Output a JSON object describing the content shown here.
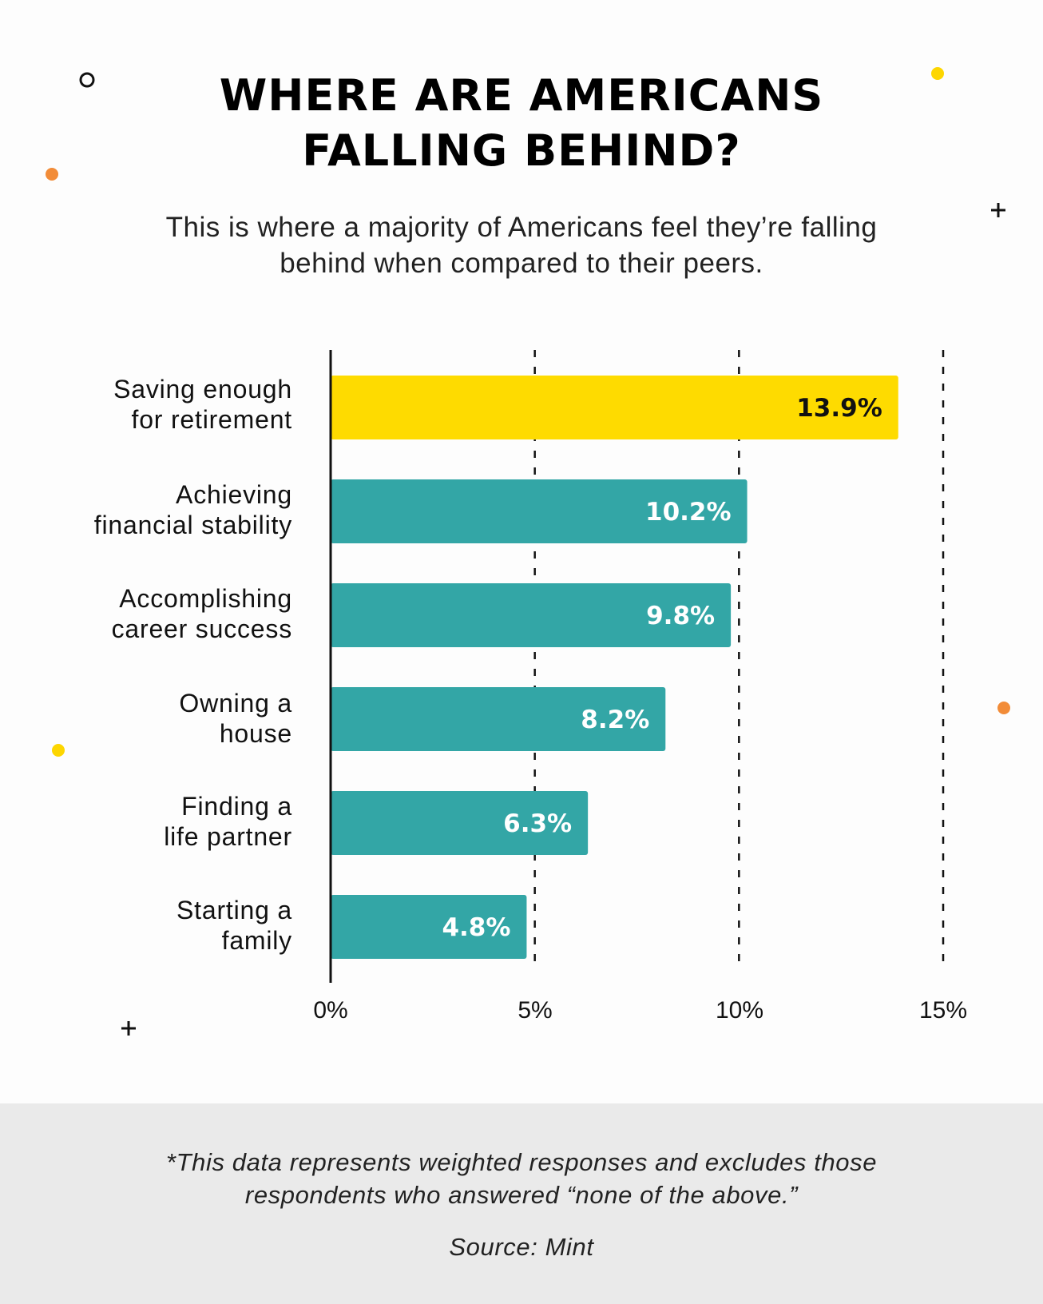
{
  "title_lines": [
    "WHERE ARE AMERICANS",
    "FALLING BEHIND?"
  ],
  "subtitle_lines": [
    "This is where a majority of Americans feel they’re falling",
    "behind when compared to their peers."
  ],
  "chart_data": {
    "type": "bar",
    "orientation": "horizontal",
    "categories": [
      [
        "Saving enough",
        "for retirement"
      ],
      [
        "Achieving",
        "financial stability"
      ],
      [
        "Accomplishing",
        "career success"
      ],
      [
        "Owning a",
        "house"
      ],
      [
        "Finding a",
        "life partner"
      ],
      [
        "Starting a",
        "family"
      ]
    ],
    "values": [
      13.9,
      10.2,
      9.8,
      8.2,
      6.3,
      4.8
    ],
    "value_labels": [
      "13.9%",
      "10.2%",
      "9.8%",
      "8.2%",
      "6.3%",
      "4.8%"
    ],
    "xlim": [
      0,
      15
    ],
    "xticks": [
      0,
      5,
      10,
      15
    ],
    "xtick_labels": [
      "0%",
      "5%",
      "10%",
      "15%"
    ],
    "grid": "dashed vertical at 5%, 10%, 15%",
    "bar_colors": [
      "#fedb00",
      "#33a6a6",
      "#33a6a6",
      "#33a6a6",
      "#33a6a6",
      "#33a6a6"
    ],
    "label_colors": [
      "#111111",
      "#ffffff",
      "#ffffff",
      "#ffffff",
      "#ffffff",
      "#ffffff"
    ]
  },
  "footnote_lines": [
    "*This data represents weighted responses and excludes those",
    "respondents who answered “none of the above.”"
  ],
  "source": "Source: Mint",
  "decor_colors": {
    "yellow": "#fdd600",
    "orange": "#f28c38",
    "dark": "#111111"
  }
}
